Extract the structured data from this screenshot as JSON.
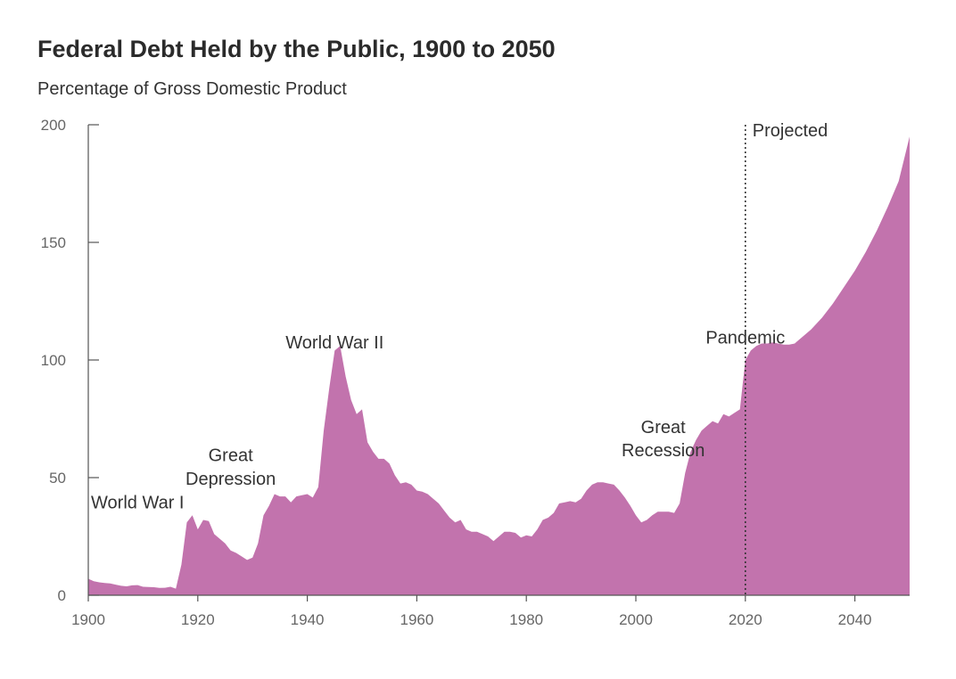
{
  "chart_data": {
    "type": "area",
    "title": "Federal Debt Held by the Public, 1900 to 2050",
    "subtitle": "Percentage of Gross Domestic Product",
    "xlabel": "",
    "ylabel": "",
    "xlim": [
      1900,
      2050
    ],
    "ylim": [
      0,
      200
    ],
    "x_ticks": [
      "1900",
      "1920",
      "1940",
      "1960",
      "1980",
      "2000",
      "2020",
      "2040"
    ],
    "y_ticks": [
      "0",
      "50",
      "100",
      "150",
      "200"
    ],
    "grid": false,
    "fill_color": "#c273ad",
    "projection_start": 2020,
    "annotations": [
      {
        "label": "World War I",
        "x": 1909,
        "y": 37
      },
      {
        "label": "Great",
        "x": 1926,
        "y": 57
      },
      {
        "label": "Depression",
        "x": 1926,
        "y": 47
      },
      {
        "label": "World War II",
        "x": 1945,
        "y": 105
      },
      {
        "label": "Great",
        "x": 2005,
        "y": 69
      },
      {
        "label": "Recession",
        "x": 2005,
        "y": 59
      },
      {
        "label": "Pandemic",
        "x": 2020,
        "y": 107
      },
      {
        "label": "Projected",
        "x": 2028,
        "y": 195
      }
    ],
    "series": [
      {
        "values": [
          [
            1900,
            7
          ],
          [
            1901,
            6
          ],
          [
            1902,
            5.5
          ],
          [
            1903,
            5.2
          ],
          [
            1904,
            5
          ],
          [
            1905,
            4.5
          ],
          [
            1906,
            4
          ],
          [
            1907,
            3.8
          ],
          [
            1908,
            4.2
          ],
          [
            1909,
            4.3
          ],
          [
            1910,
            3.6
          ],
          [
            1911,
            3.5
          ],
          [
            1912,
            3.4
          ],
          [
            1913,
            3.1
          ],
          [
            1914,
            3.2
          ],
          [
            1915,
            3.6
          ],
          [
            1916,
            2.8
          ],
          [
            1917,
            13
          ],
          [
            1918,
            31
          ],
          [
            1919,
            34
          ],
          [
            1920,
            28
          ],
          [
            1921,
            32
          ],
          [
            1922,
            31.5
          ],
          [
            1923,
            26
          ],
          [
            1924,
            24
          ],
          [
            1925,
            22
          ],
          [
            1926,
            19
          ],
          [
            1927,
            18
          ],
          [
            1928,
            16.5
          ],
          [
            1929,
            15
          ],
          [
            1930,
            16
          ],
          [
            1931,
            22
          ],
          [
            1932,
            34
          ],
          [
            1933,
            38
          ],
          [
            1934,
            43
          ],
          [
            1935,
            42
          ],
          [
            1936,
            42
          ],
          [
            1937,
            39.5
          ],
          [
            1938,
            42
          ],
          [
            1939,
            42.5
          ],
          [
            1940,
            43
          ],
          [
            1941,
            41.5
          ],
          [
            1942,
            46
          ],
          [
            1943,
            70
          ],
          [
            1944,
            88
          ],
          [
            1945,
            104
          ],
          [
            1946,
            106
          ],
          [
            1947,
            93
          ],
          [
            1948,
            83
          ],
          [
            1949,
            77
          ],
          [
            1950,
            79
          ],
          [
            1951,
            65
          ],
          [
            1952,
            61
          ],
          [
            1953,
            58
          ],
          [
            1954,
            58
          ],
          [
            1955,
            56
          ],
          [
            1956,
            51
          ],
          [
            1957,
            47.5
          ],
          [
            1958,
            48
          ],
          [
            1959,
            47
          ],
          [
            1960,
            44.5
          ],
          [
            1961,
            44
          ],
          [
            1962,
            43
          ],
          [
            1963,
            41
          ],
          [
            1964,
            39
          ],
          [
            1965,
            36
          ],
          [
            1966,
            33
          ],
          [
            1967,
            31
          ],
          [
            1968,
            32
          ],
          [
            1969,
            28
          ],
          [
            1970,
            27
          ],
          [
            1971,
            27
          ],
          [
            1972,
            26
          ],
          [
            1973,
            25
          ],
          [
            1974,
            23
          ],
          [
            1975,
            25
          ],
          [
            1976,
            27
          ],
          [
            1977,
            27
          ],
          [
            1978,
            26.5
          ],
          [
            1979,
            24.5
          ],
          [
            1980,
            25.5
          ],
          [
            1981,
            25
          ],
          [
            1982,
            28
          ],
          [
            1983,
            32
          ],
          [
            1984,
            33
          ],
          [
            1985,
            35
          ],
          [
            1986,
            39
          ],
          [
            1987,
            39.5
          ],
          [
            1988,
            40
          ],
          [
            1989,
            39.5
          ],
          [
            1990,
            41
          ],
          [
            1991,
            44.5
          ],
          [
            1992,
            47
          ],
          [
            1993,
            48
          ],
          [
            1994,
            48
          ],
          [
            1995,
            47.5
          ],
          [
            1996,
            47
          ],
          [
            1997,
            44.5
          ],
          [
            1998,
            41.5
          ],
          [
            1999,
            38
          ],
          [
            2000,
            34
          ],
          [
            2001,
            31
          ],
          [
            2002,
            32
          ],
          [
            2003,
            34
          ],
          [
            2004,
            35.5
          ],
          [
            2005,
            35.5
          ],
          [
            2006,
            35.5
          ],
          [
            2007,
            35
          ],
          [
            2008,
            39
          ],
          [
            2009,
            52
          ],
          [
            2010,
            61
          ],
          [
            2011,
            66
          ],
          [
            2012,
            70
          ],
          [
            2013,
            72
          ],
          [
            2014,
            74
          ],
          [
            2015,
            73
          ],
          [
            2016,
            77
          ],
          [
            2017,
            76
          ],
          [
            2018,
            77.5
          ],
          [
            2019,
            79
          ],
          [
            2020,
            100
          ],
          [
            2021,
            104
          ],
          [
            2022,
            106
          ],
          [
            2023,
            107
          ],
          [
            2024,
            107
          ],
          [
            2025,
            107.5
          ],
          [
            2026,
            107
          ],
          [
            2027,
            106.5
          ],
          [
            2028,
            106.5
          ],
          [
            2029,
            107
          ],
          [
            2030,
            109
          ],
          [
            2032,
            113
          ],
          [
            2034,
            118
          ],
          [
            2036,
            124
          ],
          [
            2038,
            131
          ],
          [
            2040,
            138
          ],
          [
            2042,
            146
          ],
          [
            2044,
            155
          ],
          [
            2046,
            165
          ],
          [
            2048,
            176
          ],
          [
            2050,
            195
          ]
        ]
      }
    ]
  }
}
